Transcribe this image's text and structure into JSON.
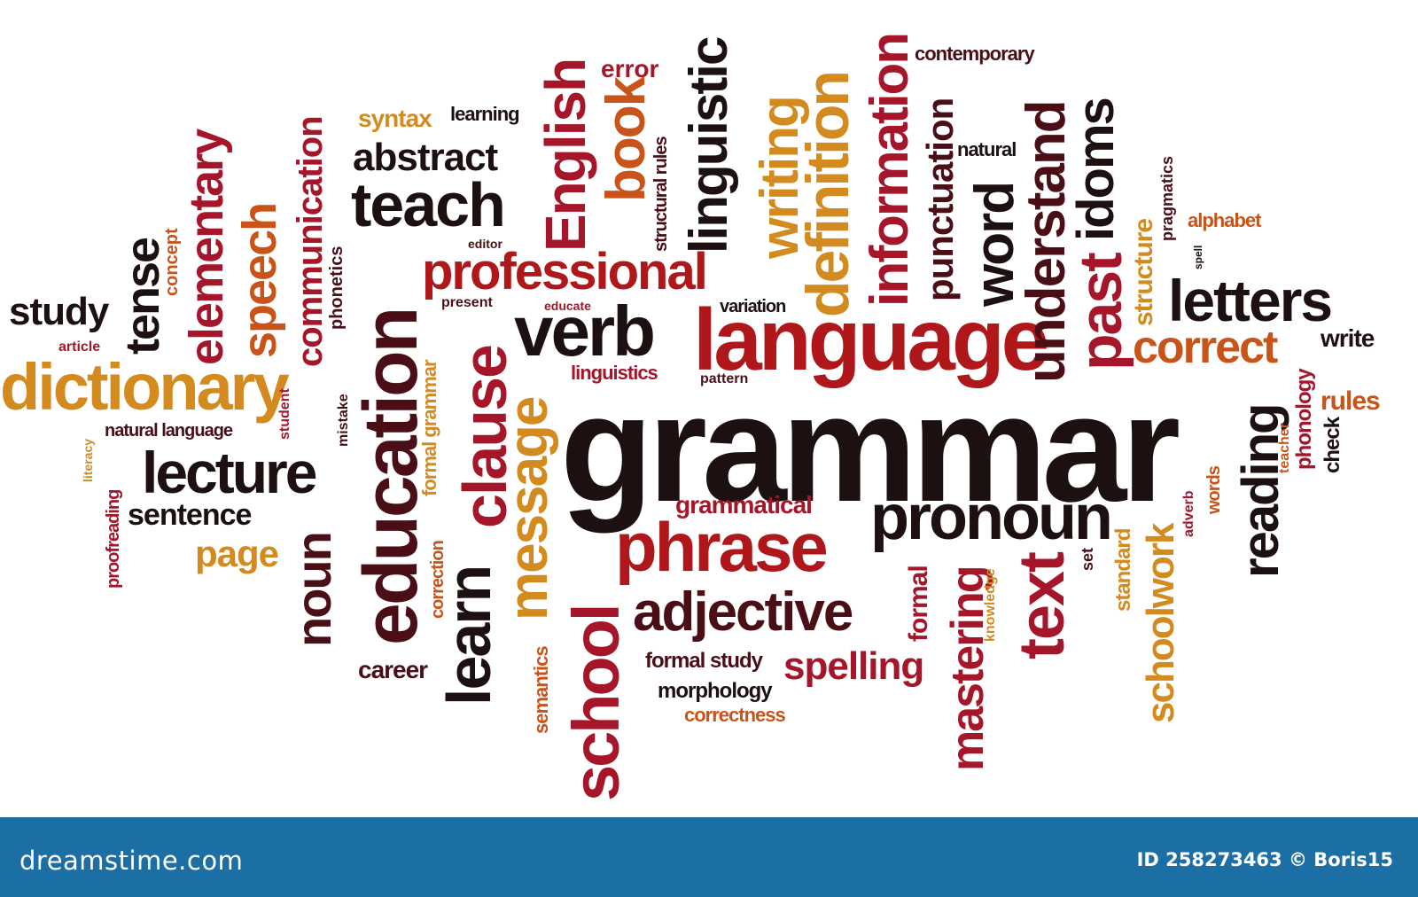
{
  "palette": {
    "maroon": "#4a0f16",
    "red": "#b0171b",
    "crimson": "#a5162a",
    "orange": "#c9541a",
    "gold": "#d38a1e",
    "dark": "#1c1010",
    "footer_bg": "#1c6fa4"
  },
  "words": [
    {
      "text": "grammar",
      "color": "dark"
    },
    {
      "text": "language",
      "color": "red"
    },
    {
      "text": "education",
      "color": "maroon"
    },
    {
      "text": "dictionary",
      "color": "gold"
    },
    {
      "text": "professional",
      "color": "red"
    },
    {
      "text": "phrase",
      "color": "red"
    },
    {
      "text": "pronoun",
      "color": "dark"
    },
    {
      "text": "adjective",
      "color": "maroon"
    },
    {
      "text": "letters",
      "color": "dark"
    },
    {
      "text": "verb",
      "color": "dark"
    },
    {
      "text": "teach",
      "color": "dark"
    },
    {
      "text": "lecture",
      "color": "dark"
    },
    {
      "text": "correct",
      "color": "orange"
    },
    {
      "text": "abstract",
      "color": "dark"
    },
    {
      "text": "study",
      "color": "dark"
    },
    {
      "text": "sentence",
      "color": "dark"
    },
    {
      "text": "page",
      "color": "gold"
    },
    {
      "text": "spelling",
      "color": "crimson"
    },
    {
      "text": "grammatical",
      "color": "crimson"
    },
    {
      "text": "career",
      "color": "maroon"
    },
    {
      "text": "morphology",
      "color": "dark"
    },
    {
      "text": "formal study",
      "color": "maroon"
    },
    {
      "text": "correctness",
      "color": "orange"
    },
    {
      "text": "contemporary",
      "color": "maroon"
    },
    {
      "text": "error",
      "color": "crimson"
    },
    {
      "text": "syntax",
      "color": "gold"
    },
    {
      "text": "learning",
      "color": "dark"
    },
    {
      "text": "linguistics",
      "color": "crimson"
    },
    {
      "text": "natural language",
      "color": "maroon"
    },
    {
      "text": "write",
      "color": "dark"
    },
    {
      "text": "rules",
      "color": "orange"
    },
    {
      "text": "alphabet",
      "color": "orange"
    },
    {
      "text": "variation",
      "color": "dark"
    },
    {
      "text": "article",
      "color": "crimson"
    },
    {
      "text": "natural",
      "color": "dark"
    },
    {
      "text": "present",
      "color": "maroon"
    },
    {
      "text": "educate",
      "color": "crimson"
    },
    {
      "text": "pattern",
      "color": "maroon"
    },
    {
      "text": "editor",
      "color": "maroon"
    },
    {
      "text": "tense",
      "color": "dark"
    },
    {
      "text": "elementary",
      "color": "crimson"
    },
    {
      "text": "speech",
      "color": "orange"
    },
    {
      "text": "communication",
      "color": "crimson"
    },
    {
      "text": "concept",
      "color": "orange"
    },
    {
      "text": "phonetics",
      "color": "maroon"
    },
    {
      "text": "noun",
      "color": "maroon"
    },
    {
      "text": "mistake",
      "color": "maroon"
    },
    {
      "text": "student",
      "color": "crimson"
    },
    {
      "text": "learn",
      "color": "dark"
    },
    {
      "text": "clause",
      "color": "crimson"
    },
    {
      "text": "message",
      "color": "gold"
    },
    {
      "text": "formal grammar",
      "color": "gold"
    },
    {
      "text": "correction",
      "color": "orange"
    },
    {
      "text": "English",
      "color": "crimson"
    },
    {
      "text": "book",
      "color": "orange"
    },
    {
      "text": "structural rules",
      "color": "maroon"
    },
    {
      "text": "linguistic",
      "color": "dark"
    },
    {
      "text": "writing",
      "color": "gold"
    },
    {
      "text": "definition",
      "color": "gold"
    },
    {
      "text": "information",
      "color": "crimson"
    },
    {
      "text": "punctuation",
      "color": "maroon"
    },
    {
      "text": "word",
      "color": "dark"
    },
    {
      "text": "understand",
      "color": "maroon"
    },
    {
      "text": "idoms",
      "color": "dark"
    },
    {
      "text": "past",
      "color": "crimson"
    },
    {
      "text": "structure",
      "color": "gold"
    },
    {
      "text": "pragmatics",
      "color": "maroon"
    },
    {
      "text": "school",
      "color": "crimson"
    },
    {
      "text": "semantics",
      "color": "orange"
    },
    {
      "text": "text",
      "color": "crimson"
    },
    {
      "text": "mastering",
      "color": "crimson"
    },
    {
      "text": "formal",
      "color": "crimson"
    },
    {
      "text": "knowledge",
      "color": "gold"
    },
    {
      "text": "schoolwork",
      "color": "gold"
    },
    {
      "text": "standard",
      "color": "gold"
    },
    {
      "text": "reading",
      "color": "dark"
    },
    {
      "text": "phonology",
      "color": "crimson"
    },
    {
      "text": "check",
      "color": "dark"
    },
    {
      "text": "teacher",
      "color": "orange"
    },
    {
      "text": "words",
      "color": "orange"
    },
    {
      "text": "adverb",
      "color": "crimson"
    },
    {
      "text": "set",
      "color": "maroon"
    },
    {
      "text": "literacy",
      "color": "gold"
    },
    {
      "text": "proofreading",
      "color": "crimson"
    },
    {
      "text": "spell",
      "color": "dark"
    }
  ],
  "footer": {
    "logo": "dreamstime.com",
    "id_text": "ID 258273463 © Boris15"
  }
}
